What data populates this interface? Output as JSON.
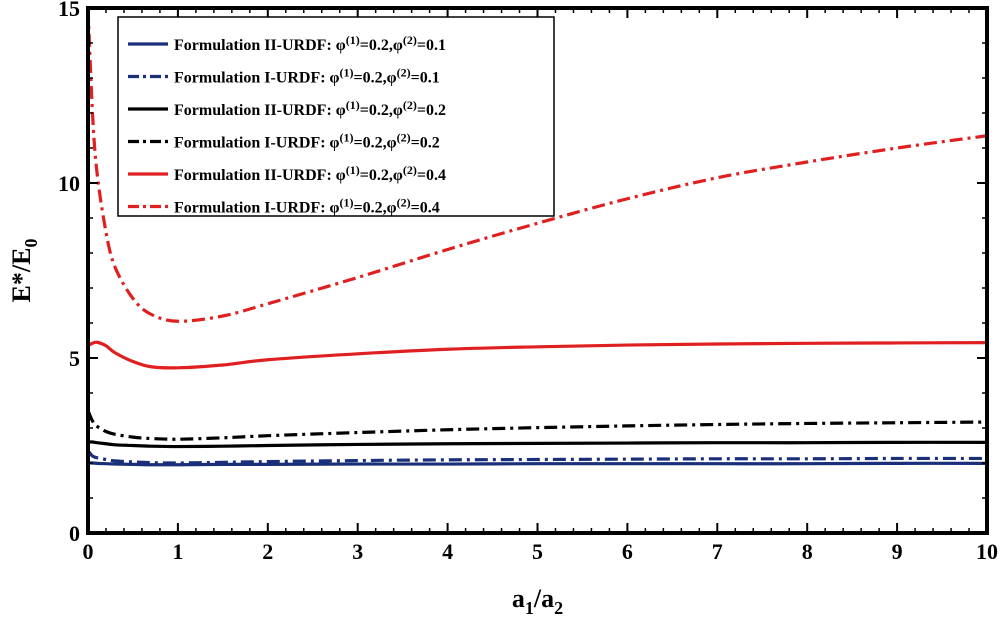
{
  "chart_data": {
    "type": "line",
    "xlabel": {
      "main": "a",
      "sub1": "1",
      "sep": "/a",
      "sub2": "2"
    },
    "ylabel": {
      "main": "E*/E",
      "sub": "0"
    },
    "xlim": [
      0,
      10
    ],
    "ylim": [
      0,
      15
    ],
    "xticks": [
      "0",
      "1",
      "2",
      "3",
      "4",
      "5",
      "6",
      "7",
      "8",
      "9",
      "10"
    ],
    "yticks": [
      "0",
      "5",
      "10",
      "15"
    ],
    "x": [
      0,
      0.05,
      0.1,
      0.2,
      0.3,
      0.5,
      0.7,
      1,
      1.5,
      2,
      3,
      4,
      5,
      6,
      7,
      8,
      9,
      10
    ],
    "series": [
      {
        "name": "Formulation II-URDF: φ(1)=0.2,φ(2)=0.1",
        "prefix": "Formulation II-URDF: φ",
        "p1": "(1)",
        "mid": "=0.2,φ",
        "p2": "(2)",
        "suffix": "=0.1",
        "color": "#1a2f7a",
        "dash": "solid",
        "values": [
          2.0,
          2.0,
          1.99,
          1.98,
          1.97,
          1.96,
          1.95,
          1.95,
          1.96,
          1.96,
          1.97,
          1.97,
          1.98,
          1.98,
          1.98,
          1.98,
          1.99,
          1.99
        ]
      },
      {
        "name": "Formulation I-URDF: φ(1)=0.2,φ(2)=0.1",
        "prefix": "Formulation I-URDF: φ",
        "p1": "(1)",
        "mid": "=0.2,φ",
        "p2": "(2)",
        "suffix": "=0.1",
        "color": "#1a2f7a",
        "dash": "dashdot",
        "values": [
          2.35,
          2.2,
          2.15,
          2.1,
          2.06,
          2.03,
          2.01,
          2.0,
          2.02,
          2.04,
          2.07,
          2.09,
          2.1,
          2.11,
          2.12,
          2.12,
          2.13,
          2.13
        ]
      },
      {
        "name": "Formulation II-URDF: φ(1)=0.2,φ(2)=0.2",
        "prefix": "Formulation II-URDF: φ",
        "p1": "(1)",
        "mid": "=0.2,φ",
        "p2": "(2)",
        "suffix": "=0.2",
        "color": "#000000",
        "dash": "solid",
        "values": [
          2.6,
          2.6,
          2.58,
          2.55,
          2.52,
          2.5,
          2.48,
          2.47,
          2.48,
          2.5,
          2.53,
          2.55,
          2.56,
          2.57,
          2.58,
          2.58,
          2.59,
          2.59
        ]
      },
      {
        "name": "Formulation I-URDF: φ(1)=0.2,φ(2)=0.2",
        "prefix": "Formulation I-URDF: φ",
        "p1": "(1)",
        "mid": "=0.2,φ",
        "p2": "(2)",
        "suffix": "=0.2",
        "color": "#000000",
        "dash": "dashdot",
        "values": [
          3.5,
          3.2,
          3.05,
          2.9,
          2.82,
          2.74,
          2.7,
          2.68,
          2.72,
          2.78,
          2.87,
          2.95,
          3.01,
          3.06,
          3.1,
          3.13,
          3.15,
          3.17
        ]
      },
      {
        "name": "Formulation II-URDF: φ(1)=0.2,φ(2)=0.4",
        "prefix": "Formulation II-URDF: φ",
        "p1": "(1)",
        "mid": "=0.2,φ",
        "p2": "(2)",
        "suffix": "=0.4",
        "color": "#e02020",
        "dash": "solid",
        "values": [
          5.35,
          5.42,
          5.45,
          5.35,
          5.15,
          4.9,
          4.75,
          4.72,
          4.8,
          4.95,
          5.12,
          5.25,
          5.32,
          5.37,
          5.4,
          5.42,
          5.43,
          5.44
        ]
      },
      {
        "name": "Formulation I-URDF: φ(1)=0.2,φ(2)=0.4",
        "prefix": "Formulation I-URDF: φ",
        "p1": "(1)",
        "mid": "=0.2,φ",
        "p2": "(2)",
        "suffix": "=0.4",
        "color": "#e02020",
        "dash": "dashdot",
        "values": [
          15.0,
          12.0,
          10.3,
          8.6,
          7.6,
          6.7,
          6.25,
          6.05,
          6.2,
          6.55,
          7.3,
          8.1,
          8.85,
          9.55,
          10.15,
          10.6,
          11.0,
          11.35
        ]
      }
    ]
  }
}
